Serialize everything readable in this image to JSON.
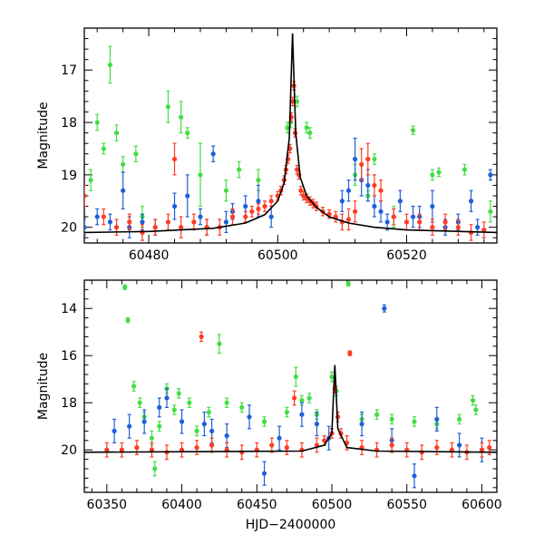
{
  "chart_data": [
    {
      "type": "scatter",
      "panel": "top",
      "xlabel": "",
      "ylabel": "Magnitude",
      "xlim": [
        60470,
        60534
      ],
      "ylim": [
        20.3,
        16.2
      ],
      "y_inverted": true,
      "xticks_major": [
        60480,
        60500,
        60520
      ],
      "yticks_major": [
        17,
        18,
        19,
        20
      ],
      "colors": {
        "green": "#44dd44",
        "blue": "#1f5fd9",
        "red": "#ff3b24",
        "model": "#000000"
      },
      "model_curve": {
        "name": "",
        "peak_x": 60502.3,
        "peak_y": 16.3,
        "baseline_y": 20.1,
        "x": [
          60470,
          60480,
          60490,
          60495,
          60498,
          60500,
          60501,
          60501.8,
          60502.3,
          60502.8,
          60503.5,
          60504.5,
          60506,
          60508,
          60511,
          60515,
          60520,
          60534
        ],
        "y": [
          20.1,
          20.08,
          20.02,
          19.92,
          19.76,
          19.5,
          19.15,
          18.3,
          16.3,
          18.2,
          19.05,
          19.4,
          19.62,
          19.8,
          19.92,
          20.0,
          20.05,
          20.1
        ]
      },
      "series": [
        {
          "color_name": "green",
          "x": [
            60471,
            60472,
            60473,
            60474,
            60475,
            60476,
            60478,
            60479,
            60483,
            60485,
            60486,
            60488,
            60492,
            60494,
            60497,
            60501.5,
            60502,
            60503,
            60504.5,
            60505,
            60512,
            60514,
            60515,
            60518,
            60521,
            60524,
            60525,
            60529,
            60533
          ],
          "y": [
            19.1,
            18.0,
            18.5,
            16.9,
            18.2,
            18.8,
            18.6,
            19.8,
            17.7,
            17.9,
            18.2,
            19.0,
            19.3,
            18.9,
            19.1,
            18.1,
            18.0,
            17.6,
            18.1,
            18.2,
            19.0,
            19.4,
            18.7,
            19.8,
            18.15,
            19.0,
            18.95,
            18.9,
            19.7
          ],
          "err": [
            0.2,
            0.15,
            0.1,
            0.35,
            0.15,
            0.15,
            0.15,
            0.2,
            0.3,
            0.3,
            0.1,
            0.6,
            0.2,
            0.15,
            0.2,
            0.1,
            0.1,
            0.1,
            0.1,
            0.1,
            0.2,
            0.1,
            0.1,
            0.2,
            0.08,
            0.1,
            0.08,
            0.1,
            0.2
          ]
        },
        {
          "color_name": "blue",
          "x": [
            60470,
            60472,
            60474,
            60476,
            60477,
            60479,
            60481,
            60484,
            60486,
            60488,
            60489,
            60490,
            60492,
            60493,
            60495,
            60497,
            60499,
            60510,
            60511,
            60512,
            60513,
            60514,
            60515,
            60516,
            60517,
            60519,
            60521,
            60522,
            60524,
            60526,
            60528,
            60530,
            60531,
            60533
          ],
          "y": [
            20.0,
            19.8,
            19.9,
            19.3,
            20.0,
            19.9,
            20.0,
            19.6,
            19.4,
            19.8,
            20.0,
            18.6,
            19.9,
            19.7,
            19.6,
            19.5,
            19.8,
            19.5,
            19.3,
            18.7,
            19.1,
            19.2,
            19.6,
            19.7,
            19.9,
            19.5,
            19.8,
            19.8,
            19.6,
            20.0,
            19.9,
            19.5,
            20.0,
            19.0
          ],
          "err": [
            0.15,
            0.15,
            0.15,
            0.35,
            0.2,
            0.15,
            0.15,
            0.25,
            0.4,
            0.15,
            0.15,
            0.15,
            0.2,
            0.15,
            0.2,
            0.3,
            0.2,
            0.2,
            0.2,
            0.4,
            0.3,
            0.3,
            0.2,
            0.2,
            0.15,
            0.2,
            0.2,
            0.2,
            0.3,
            0.15,
            0.15,
            0.2,
            0.15,
            0.1
          ]
        },
        {
          "color_name": "red",
          "x": [
            60470,
            60473,
            60475,
            60477,
            60479,
            60481,
            60483,
            60484,
            60485,
            60487,
            60489,
            60491,
            60493,
            60495,
            60496,
            60497,
            60498,
            60499,
            60500,
            60500.5,
            60501,
            60501.3,
            60501.6,
            60501.9,
            60502.1,
            60502.3,
            60502.5,
            60502.7,
            60503,
            60503.3,
            60503.6,
            60504,
            60504.5,
            60505,
            60505.5,
            60506,
            60507,
            60508,
            60509,
            60510,
            60511,
            60512,
            60513,
            60514,
            60515,
            60516,
            60518,
            60520,
            60522,
            60524,
            60526,
            60528,
            60530,
            60532
          ],
          "y": [
            19.4,
            19.8,
            20.0,
            19.9,
            20.1,
            20.0,
            19.9,
            18.7,
            20.0,
            19.9,
            20.0,
            20.0,
            19.8,
            19.8,
            19.7,
            19.65,
            19.6,
            19.5,
            19.4,
            19.3,
            19.1,
            18.9,
            18.7,
            18.5,
            17.9,
            17.6,
            17.3,
            18.2,
            18.9,
            19.0,
            19.3,
            19.4,
            19.45,
            19.5,
            19.55,
            19.6,
            19.7,
            19.75,
            19.8,
            19.9,
            19.85,
            19.7,
            18.8,
            18.7,
            19.2,
            19.3,
            19.8,
            19.9,
            19.9,
            20.0,
            19.9,
            20.0,
            20.1,
            20.05
          ],
          "err": [
            0.2,
            0.15,
            0.15,
            0.15,
            0.15,
            0.15,
            0.15,
            0.3,
            0.2,
            0.15,
            0.15,
            0.15,
            0.15,
            0.1,
            0.1,
            0.1,
            0.1,
            0.1,
            0.08,
            0.08,
            0.08,
            0.08,
            0.08,
            0.08,
            0.08,
            0.08,
            0.08,
            0.08,
            0.08,
            0.08,
            0.08,
            0.08,
            0.08,
            0.08,
            0.08,
            0.08,
            0.08,
            0.08,
            0.1,
            0.15,
            0.2,
            0.2,
            0.3,
            0.3,
            0.2,
            0.2,
            0.15,
            0.15,
            0.15,
            0.15,
            0.15,
            0.15,
            0.15,
            0.15
          ]
        }
      ]
    },
    {
      "type": "scatter",
      "panel": "bottom",
      "xlabel": "HJD−2400000",
      "ylabel": "Magnitude",
      "xlim": [
        60335,
        60610
      ],
      "ylim": [
        21.8,
        12.8
      ],
      "y_inverted": true,
      "xticks_major": [
        60350,
        60400,
        60450,
        60500,
        60550,
        60600
      ],
      "yticks_major": [
        14,
        16,
        18,
        20
      ],
      "colors": {
        "green": "#44dd44",
        "blue": "#1f5fd9",
        "red": "#ff3b24",
        "model": "#000000"
      },
      "model_curve": {
        "name": "",
        "x": [
          60335,
          60480,
          60495,
          60500,
          60502,
          60504,
          60510,
          60530,
          60610
        ],
        "y": [
          20.1,
          20.05,
          19.8,
          19.3,
          16.4,
          19.1,
          19.9,
          20.05,
          20.1
        ]
      },
      "series": [
        {
          "color_name": "green",
          "x": [
            60362,
            60364,
            60368,
            60372,
            60375,
            60380,
            60382,
            60385,
            60390,
            60395,
            60398,
            60405,
            60410,
            60418,
            60425,
            60430,
            60440,
            60455,
            60470,
            60476,
            60480,
            60485,
            60490,
            60500,
            60503,
            60511,
            60520,
            60530,
            60540,
            60555,
            60570,
            60585,
            60594,
            60596
          ],
          "y": [
            13.1,
            14.5,
            17.3,
            18.0,
            18.6,
            19.5,
            20.8,
            19.0,
            17.4,
            18.3,
            17.6,
            18.0,
            19.2,
            18.4,
            15.5,
            18.0,
            18.2,
            18.8,
            18.4,
            16.9,
            17.9,
            17.8,
            18.5,
            16.9,
            17.5,
            12.95,
            18.7,
            18.5,
            18.7,
            18.8,
            18.9,
            18.7,
            17.9,
            18.3
          ],
          "err": [
            0.1,
            0.1,
            0.2,
            0.2,
            0.2,
            0.3,
            0.3,
            0.2,
            0.2,
            0.2,
            0.2,
            0.2,
            0.2,
            0.2,
            0.4,
            0.2,
            0.2,
            0.2,
            0.2,
            0.4,
            0.2,
            0.2,
            0.2,
            0.2,
            0.2,
            0.1,
            0.2,
            0.2,
            0.2,
            0.2,
            0.2,
            0.2,
            0.2,
            0.2
          ]
        },
        {
          "color_name": "blue",
          "x": [
            60355,
            60365,
            60375,
            60385,
            60390,
            60400,
            60415,
            60420,
            60430,
            60445,
            60455,
            60465,
            60480,
            60490,
            60498,
            60520,
            60535,
            60540,
            60555,
            60570,
            60585,
            60600
          ],
          "y": [
            19.2,
            19.0,
            18.8,
            18.2,
            17.8,
            18.8,
            18.9,
            19.2,
            19.4,
            18.6,
            21.0,
            19.5,
            18.5,
            18.9,
            19.5,
            18.9,
            14.0,
            19.6,
            21.1,
            18.7,
            19.8,
            20.0
          ],
          "err": [
            0.5,
            0.5,
            0.5,
            0.4,
            0.4,
            0.5,
            0.5,
            0.5,
            0.5,
            0.5,
            0.5,
            0.5,
            0.5,
            0.5,
            0.5,
            0.5,
            0.15,
            0.5,
            0.5,
            0.5,
            0.5,
            0.5
          ]
        },
        {
          "color_name": "red",
          "x": [
            60350,
            60360,
            60370,
            60380,
            60390,
            60400,
            60410,
            60413,
            60420,
            60430,
            60440,
            60450,
            60460,
            60470,
            60475,
            60480,
            60490,
            60495,
            60500,
            60502,
            60504,
            60506,
            60510,
            60512,
            60520,
            60530,
            60540,
            60550,
            60560,
            60570,
            60580,
            60590,
            60600,
            60605
          ],
          "y": [
            20.0,
            20.0,
            19.9,
            20.0,
            20.1,
            20.0,
            19.9,
            15.2,
            19.8,
            20.0,
            20.1,
            20.0,
            19.8,
            19.9,
            17.8,
            20.0,
            19.8,
            19.6,
            19.3,
            17.4,
            18.6,
            19.3,
            19.7,
            15.9,
            19.9,
            20.0,
            19.8,
            20.0,
            20.1,
            19.9,
            20.0,
            20.1,
            20.0,
            19.9
          ],
          "err": [
            0.3,
            0.3,
            0.3,
            0.3,
            0.3,
            0.3,
            0.3,
            0.2,
            0.3,
            0.3,
            0.3,
            0.3,
            0.3,
            0.3,
            0.3,
            0.3,
            0.3,
            0.2,
            0.2,
            0.2,
            0.2,
            0.2,
            0.3,
            0.1,
            0.3,
            0.3,
            0.3,
            0.3,
            0.3,
            0.3,
            0.3,
            0.3,
            0.3,
            0.3
          ]
        }
      ]
    }
  ]
}
